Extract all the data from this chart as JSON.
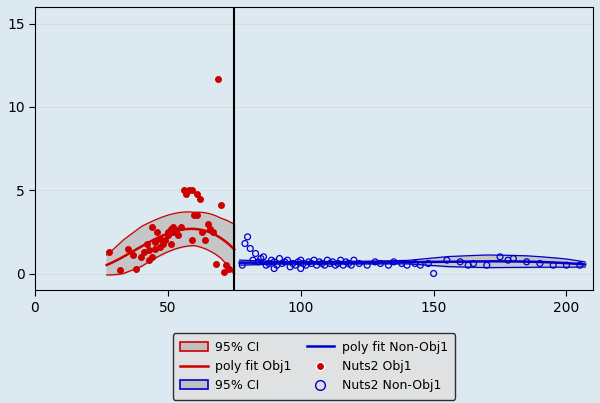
{
  "background_color": "#dce9f0",
  "plot_bg_color": "#dce9f0",
  "xlim": [
    0,
    210
  ],
  "ylim": [
    -1,
    16
  ],
  "xticks": [
    0,
    50,
    100,
    150,
    200
  ],
  "yticks": [
    0,
    5,
    10,
    15
  ],
  "vline_x": 75,
  "red_color": "#cc0000",
  "blue_color": "#0000cc",
  "ci_gray_fill": "#c0c0c0",
  "obj1_scatter_x": [
    28,
    32,
    35,
    37,
    38,
    40,
    41,
    42,
    43,
    43,
    44,
    44,
    45,
    45,
    46,
    47,
    47,
    48,
    49,
    50,
    50,
    51,
    51,
    52,
    52,
    53,
    54,
    55,
    56,
    57,
    58,
    59,
    59,
    60,
    61,
    61,
    62,
    63,
    64,
    65,
    66,
    67,
    68,
    69,
    70,
    71,
    72,
    73
  ],
  "obj1_scatter_y": [
    1.3,
    0.2,
    1.5,
    1.1,
    0.3,
    1.0,
    1.3,
    1.8,
    0.8,
    1.4,
    1.0,
    2.8,
    1.5,
    1.9,
    2.5,
    1.6,
    2.1,
    1.8,
    2.0,
    2.3,
    2.5,
    1.8,
    2.7,
    2.8,
    2.5,
    2.6,
    2.3,
    2.8,
    5.0,
    4.8,
    5.0,
    5.0,
    2.0,
    3.5,
    4.8,
    3.5,
    4.5,
    2.5,
    2.0,
    3.0,
    2.7,
    2.5,
    0.6,
    11.7,
    4.1,
    0.1,
    0.5,
    0.3
  ],
  "nonobj1_scatter_x": [
    78,
    79,
    80,
    81,
    82,
    83,
    84,
    85,
    86,
    87,
    88,
    89,
    90,
    90,
    91,
    92,
    93,
    94,
    95,
    96,
    97,
    98,
    99,
    100,
    100,
    101,
    102,
    103,
    104,
    105,
    106,
    107,
    108,
    109,
    110,
    111,
    112,
    113,
    114,
    115,
    116,
    117,
    118,
    119,
    120,
    122,
    125,
    128,
    130,
    133,
    135,
    138,
    140,
    143,
    145,
    148,
    150,
    155,
    160,
    163,
    165,
    170,
    175,
    178,
    180,
    185,
    190,
    195,
    200,
    205
  ],
  "nonobj1_scatter_y": [
    0.5,
    1.8,
    2.2,
    1.5,
    0.8,
    1.2,
    0.7,
    0.9,
    1.0,
    0.5,
    0.6,
    0.8,
    0.7,
    0.3,
    0.5,
    0.9,
    0.6,
    0.7,
    0.8,
    0.4,
    0.6,
    0.5,
    0.7,
    0.8,
    0.3,
    0.6,
    0.5,
    0.7,
    0.6,
    0.8,
    0.5,
    0.7,
    0.6,
    0.5,
    0.8,
    0.6,
    0.7,
    0.5,
    0.6,
    0.8,
    0.5,
    0.7,
    0.6,
    0.5,
    0.8,
    0.6,
    0.5,
    0.7,
    0.6,
    0.5,
    0.7,
    0.6,
    0.5,
    0.6,
    0.5,
    0.6,
    0.0,
    0.8,
    0.7,
    0.5,
    0.6,
    0.5,
    1.0,
    0.8,
    0.9,
    0.7,
    0.6,
    0.5,
    0.5,
    0.5
  ],
  "legend_fontsize": 9,
  "tick_fontsize": 10,
  "gridcolor": "#e0e0e0"
}
